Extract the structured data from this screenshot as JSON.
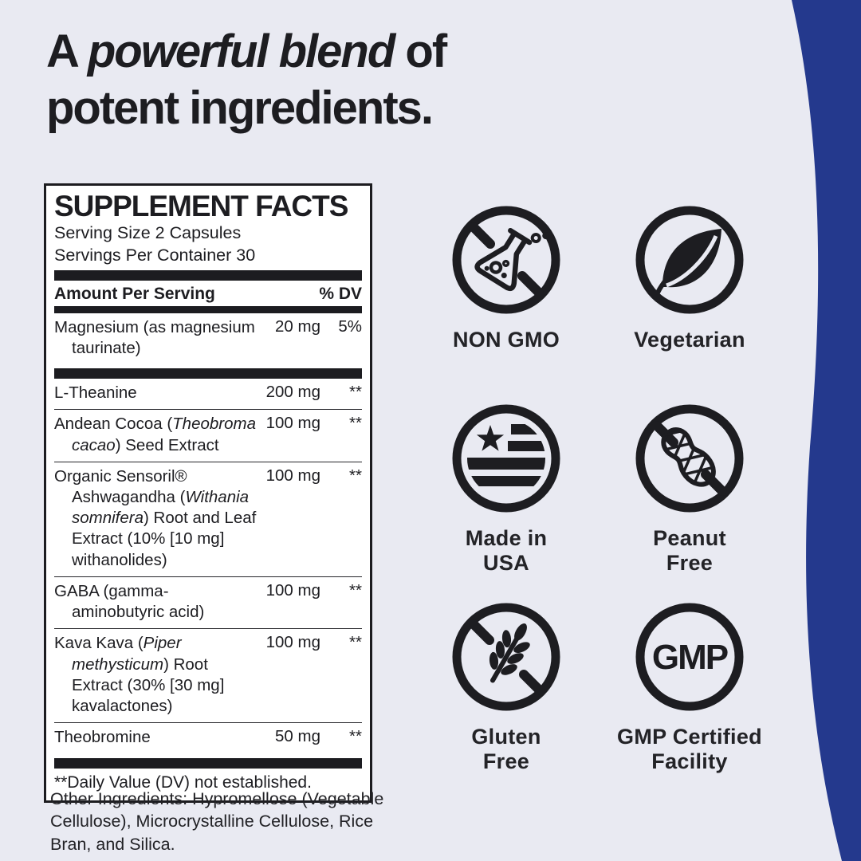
{
  "colors": {
    "background": "#e9eaf2",
    "panel_background": "#ffffff",
    "ink": "#1d1d21",
    "accent_blue": "#24398d"
  },
  "title": {
    "line1_pre": "A ",
    "line1_emphasis": "powerful blend",
    "line1_post": " of",
    "line2": "potent ingredients."
  },
  "supplement_facts": {
    "heading": "SUPPLEMENT FACTS",
    "serving_size": "Serving Size 2 Capsules",
    "servings_per_container": "Servings Per Container 30",
    "columns": {
      "amount": "Amount Per Serving",
      "dv": "% DV"
    },
    "rows": [
      {
        "name": [
          {
            "text": "Magnesium (as magnesium taurinate)",
            "italic": false
          }
        ],
        "amount": "20 mg",
        "dv": "5%",
        "thick_bar_after": true
      },
      {
        "name": [
          {
            "text": "L-Theanine",
            "italic": false
          }
        ],
        "amount": "200 mg",
        "dv": "**"
      },
      {
        "name": [
          {
            "text": "Andean Cocoa (",
            "italic": false
          },
          {
            "text": "Theobroma cacao",
            "italic": true
          },
          {
            "text": ") Seed Extract",
            "italic": false
          }
        ],
        "amount": "100 mg",
        "dv": "**"
      },
      {
        "name": [
          {
            "text": "Organic Sensoril® Ashwagandha (",
            "italic": false
          },
          {
            "text": "Withania somnifera",
            "italic": true
          },
          {
            "text": ") Root and Leaf Extract (10% [10 mg] withanolides)",
            "italic": false
          }
        ],
        "amount": "100 mg",
        "dv": "**"
      },
      {
        "name": [
          {
            "text": "GABA (gamma-aminobutyric acid)",
            "italic": false
          }
        ],
        "amount": "100 mg",
        "dv": "**"
      },
      {
        "name": [
          {
            "text": "Kava Kava (",
            "italic": false
          },
          {
            "text": "Piper methysticum",
            "italic": true
          },
          {
            "text": ") Root Extract (30% [30 mg] kavalactones)",
            "italic": false
          }
        ],
        "amount": "100 mg",
        "dv": "**"
      },
      {
        "name": [
          {
            "text": "Theobromine",
            "italic": false
          }
        ],
        "amount": "50 mg",
        "dv": "**",
        "thick_bar_after": true
      }
    ],
    "footnote": "**Daily Value (DV) not established."
  },
  "other_ingredients": "Other Ingredients: Hypromellose (Vegetable Cellulose), Microcrystalline Cellulose, Rice Bran, and Silica.",
  "badges": [
    {
      "label": "NON GMO",
      "icon": "no-gmo-flask-icon"
    },
    {
      "label": "Vegetarian",
      "icon": "leaf-icon"
    },
    {
      "label": "Made in\nUSA",
      "icon": "usa-flag-icon"
    },
    {
      "label": "Peanut\nFree",
      "icon": "no-peanut-icon"
    },
    {
      "label": "Gluten\nFree",
      "icon": "no-gluten-icon"
    },
    {
      "label": "GMP Certified\nFacility",
      "icon": "gmp-circle-icon",
      "icon_text": "GMP"
    }
  ]
}
